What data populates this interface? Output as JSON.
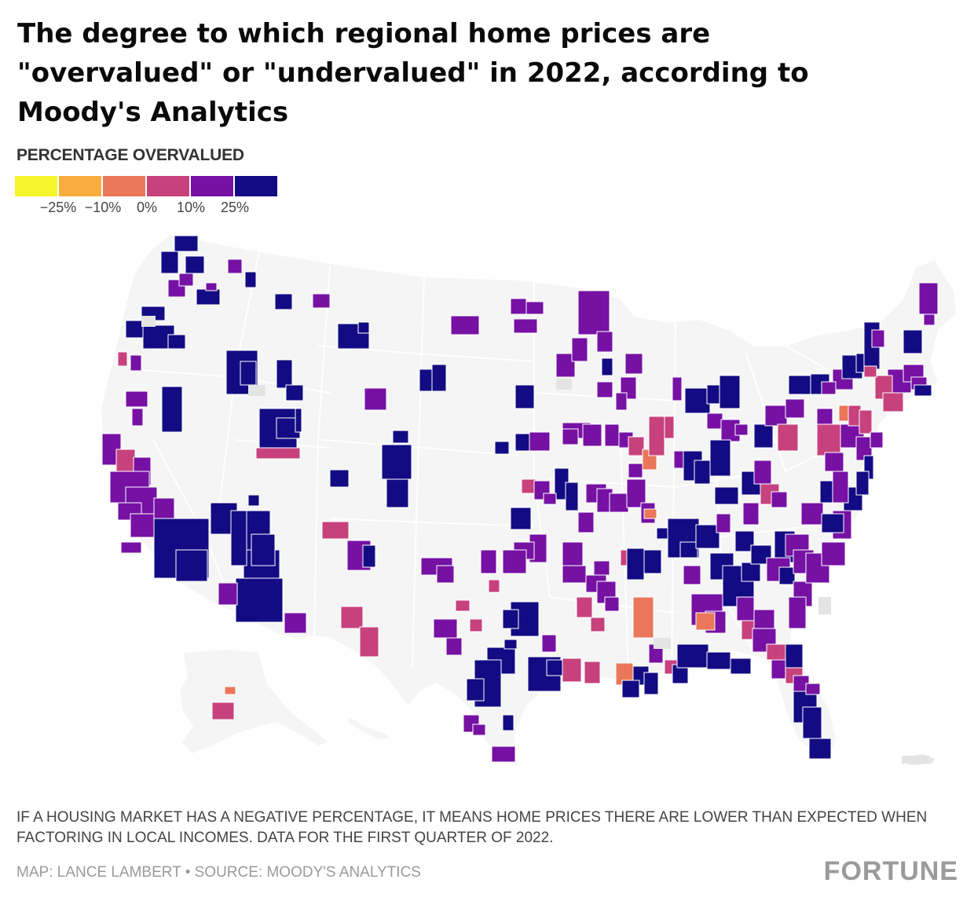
{
  "title_lines": [
    "The degree to which regional home prices are",
    "\"overvalued\" or \"undervalued\" in 2022, according to",
    "Moody's Analytics"
  ],
  "legend": {
    "title": "PERCENTAGE OVERVALUED",
    "colors": [
      "#f6f42b",
      "#f9ad3c",
      "#ea7759",
      "#c7427c",
      "#7611a4",
      "#130b83"
    ],
    "ticks": [
      "−25%",
      "−10%",
      "0%",
      "10%",
      "25%"
    ],
    "no_data_color": "#e4e4e4",
    "land_color": "#f5f5f5"
  },
  "note": "IF A HOUSING MARKET HAS A NEGATIVE PERCENTAGE, IT MEANS HOME PRICES THERE ARE LOWER THAN EXPECTED WHEN FACTORING IN LOCAL INCOMES. DATA FOR THE FIRST QUARTER OF 2022.",
  "source": "MAP: LANCE LAMBERT • SOURCE: MOODY'S ANALYTICS",
  "brand": "FORTUNE"
}
